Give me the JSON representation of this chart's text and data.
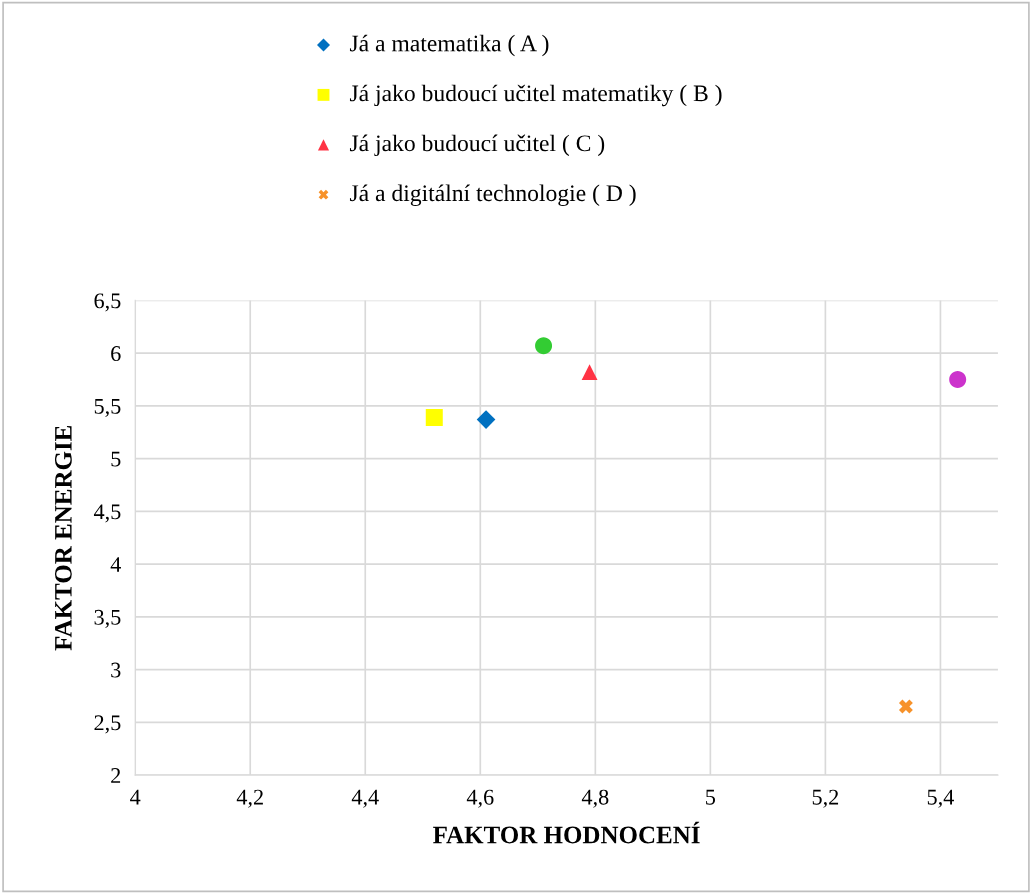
{
  "chart_data": {
    "type": "scatter",
    "xlabel": "FAKTOR HODNOCENÍ",
    "ylabel": "FAKTOR ENERGIE",
    "xlim": [
      4,
      5.5
    ],
    "ylim": [
      2,
      6.5
    ],
    "xticks": [
      4,
      {
        "value": 4.2,
        "label": "4,2"
      },
      {
        "value": 4.4,
        "label": "4,4"
      },
      {
        "value": 4.6,
        "label": "4,6"
      },
      {
        "value": 4.8,
        "label": "4,8"
      },
      5,
      {
        "value": 5.2,
        "label": "5,2"
      },
      {
        "value": 5.4,
        "label": "5,4"
      }
    ],
    "yticks": [
      2,
      {
        "value": 2.5,
        "label": "2,5"
      },
      3,
      {
        "value": 3.5,
        "label": "3,5"
      },
      4,
      {
        "value": 4.5,
        "label": "4,5"
      },
      5,
      {
        "value": 5.5,
        "label": "5,5"
      },
      6,
      {
        "value": 6.5,
        "label": "6,5"
      }
    ],
    "grid": true,
    "legend": "top",
    "series": [
      {
        "name": "Já a matematika ( A )",
        "color": "#0070c0",
        "marker": "diamond",
        "x": [
          4.61
        ],
        "values": [
          5.37
        ]
      },
      {
        "name": "Já jako budoucí učitel matematiky ( B )",
        "color": "#ffff00",
        "marker": "square",
        "x": [
          4.52
        ],
        "values": [
          5.39
        ]
      },
      {
        "name": "Já jako budoucí učitel ( C )",
        "color": "#ff3344",
        "marker": "triangle",
        "x": [
          4.79
        ],
        "values": [
          5.82
        ]
      },
      {
        "name": "Já a digitální technologie ( D )",
        "color": "#f7922a",
        "marker": "cross",
        "x": [
          5.34
        ],
        "values": [
          2.65
        ]
      },
      {
        "color": "#33cc33",
        "marker": "circle",
        "x": [
          4.71
        ],
        "values": [
          6.07
        ]
      },
      {
        "color": "#cc33cc",
        "marker": "circle",
        "x": [
          5.43
        ],
        "values": [
          5.75
        ]
      }
    ]
  }
}
